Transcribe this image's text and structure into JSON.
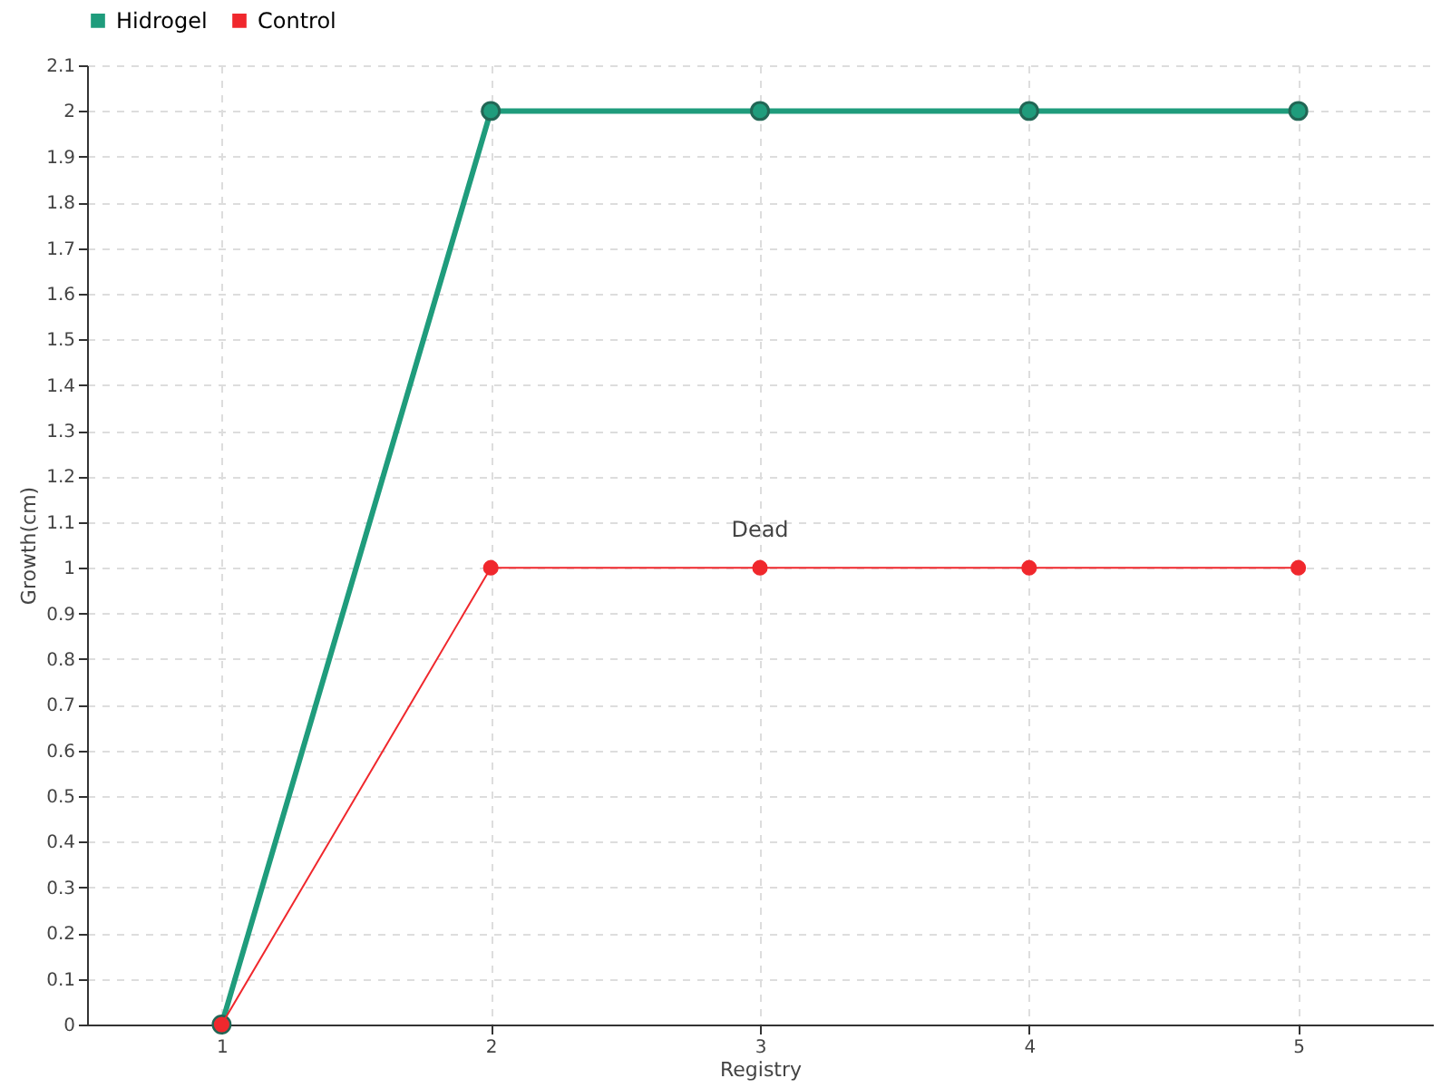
{
  "chart_data": {
    "type": "line",
    "xlabel": "Registry",
    "ylabel": "Growth(cm)",
    "x": [
      1,
      2,
      3,
      4,
      5
    ],
    "series": [
      {
        "name": "Hidrogel",
        "color": "#1f9c7c",
        "values": [
          0,
          2,
          2,
          2,
          2
        ]
      },
      {
        "name": "Control",
        "color": "#f0282d",
        "values": [
          0,
          1,
          1,
          1,
          1
        ]
      }
    ],
    "xlim": [
      0.5,
      5.5
    ],
    "xticks": [
      1,
      2,
      3,
      4,
      5
    ],
    "ylim": [
      0,
      2.1
    ],
    "yticks": [
      0,
      0.1,
      0.2,
      0.3,
      0.4,
      0.5,
      0.6,
      0.7,
      0.8,
      0.9,
      1,
      1.1,
      1.2,
      1.3,
      1.4,
      1.5,
      1.6,
      1.7,
      1.8,
      1.9,
      2,
      2.1
    ],
    "annotations": [
      {
        "text": "Dead",
        "x": 3,
        "y": 1
      }
    ],
    "grid": true,
    "legend": "top left",
    "marker": "circle",
    "line_style": "solid"
  }
}
